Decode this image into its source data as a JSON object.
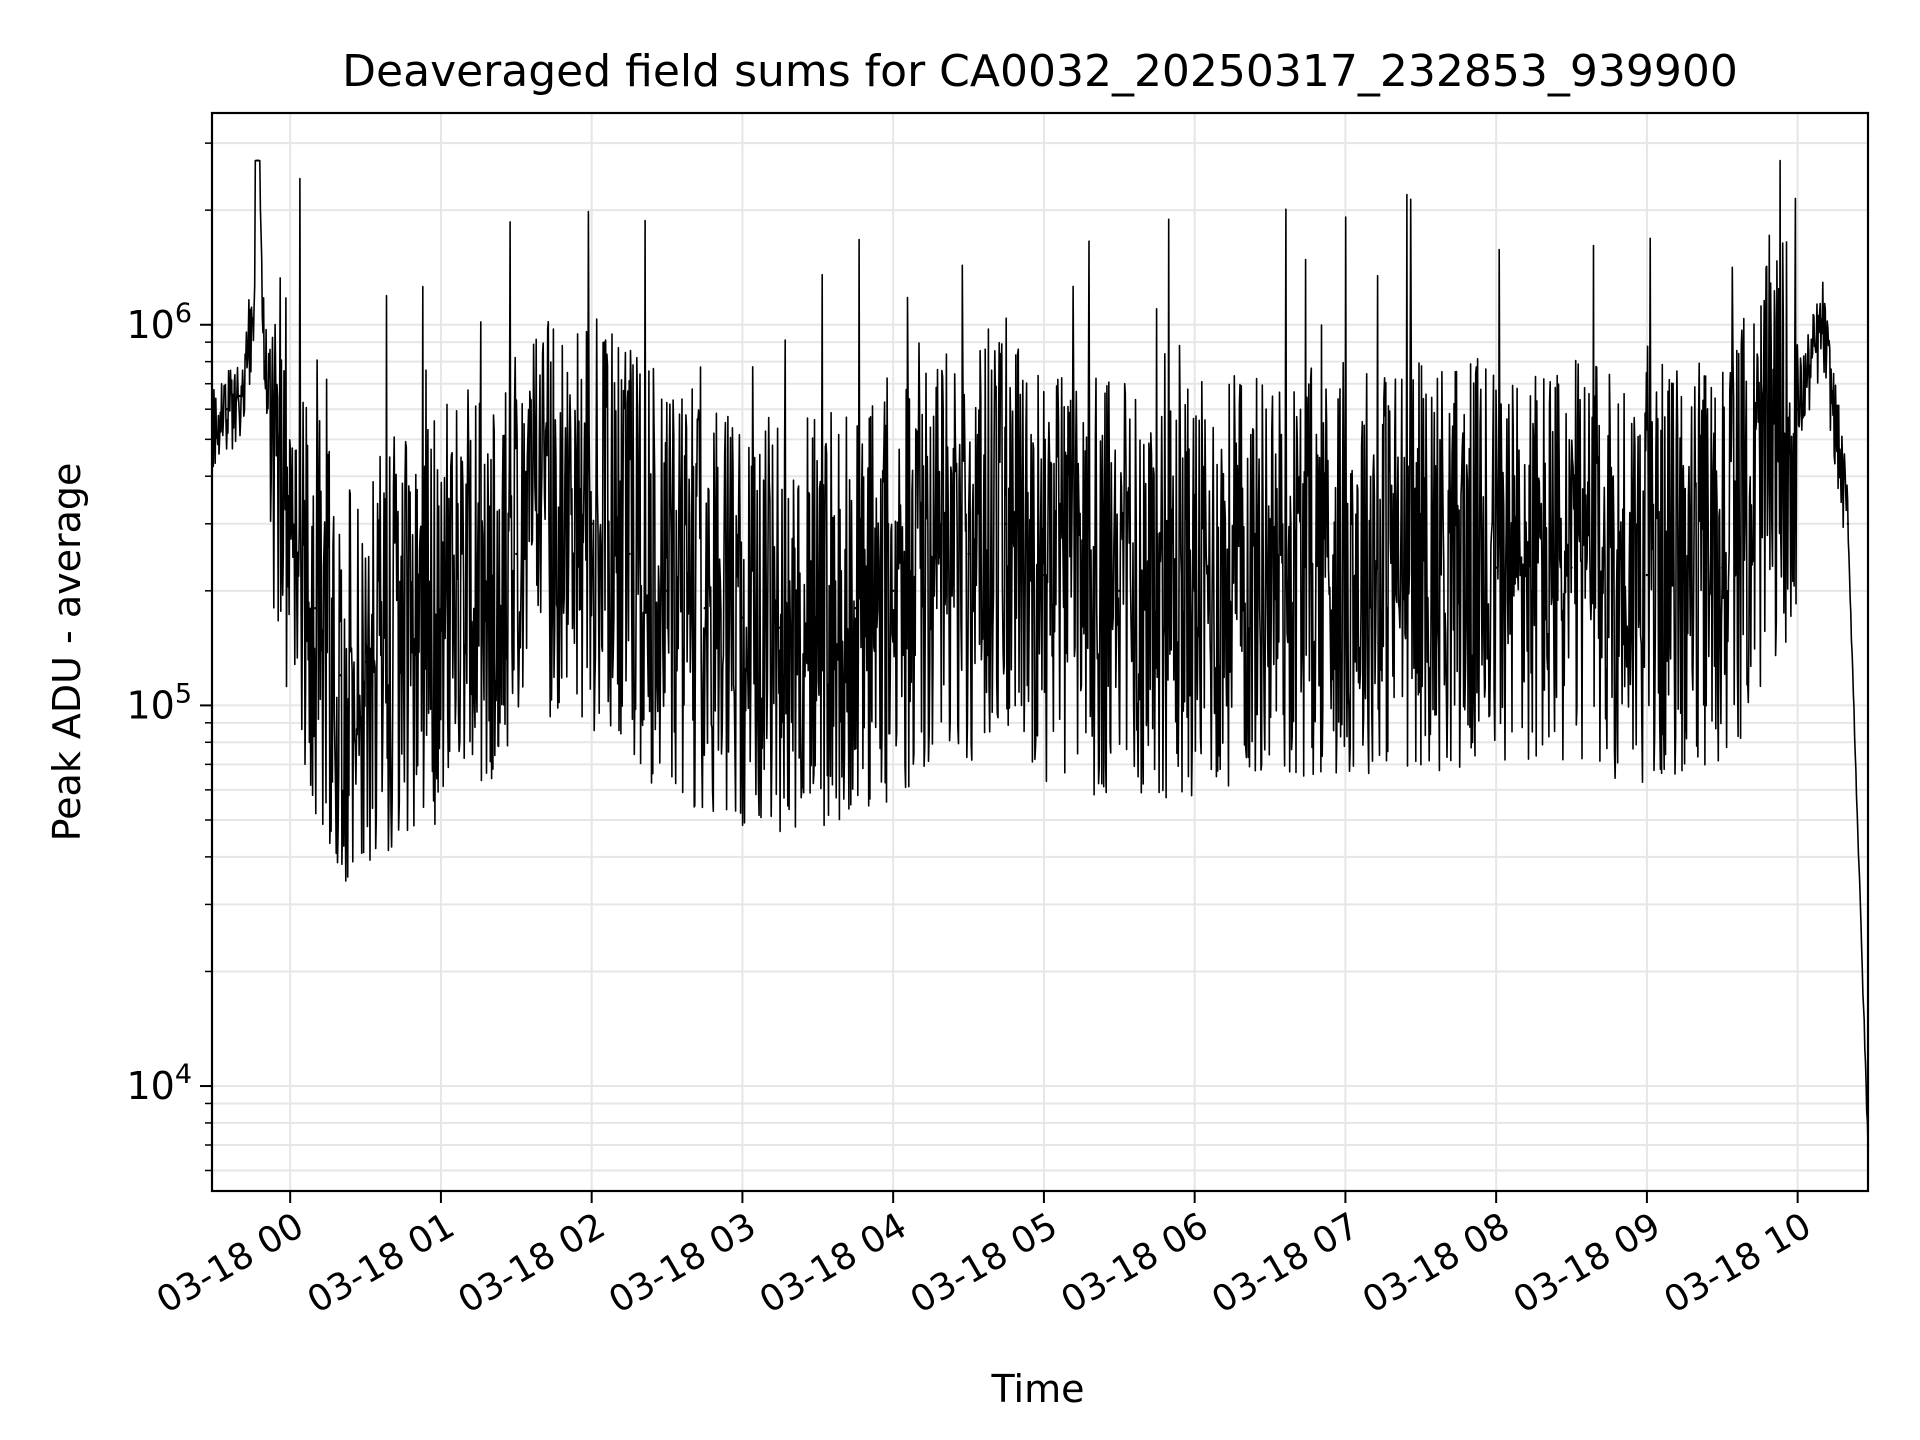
{
  "chart_data": {
    "type": "line",
    "title": "Deaveraged field sums for CA0032_20250317_232853_939900",
    "xlabel": "Time",
    "ylabel": "Peak ADU - average",
    "yscale": "log",
    "ylim": [
      5300,
      3600000
    ],
    "xlim": [
      "2025-03-17 23:28:53",
      "2025-03-18 10:28:00"
    ],
    "grid": true,
    "line_color": "#000000",
    "grid_color": "#e6e6e6",
    "x_ticks": [
      {
        "value": "2025-03-18 00:00",
        "label": "03-18 00"
      },
      {
        "value": "2025-03-18 01:00",
        "label": "03-18 01"
      },
      {
        "value": "2025-03-18 02:00",
        "label": "03-18 02"
      },
      {
        "value": "2025-03-18 03:00",
        "label": "03-18 03"
      },
      {
        "value": "2025-03-18 04:00",
        "label": "03-18 04"
      },
      {
        "value": "2025-03-18 05:00",
        "label": "03-18 05"
      },
      {
        "value": "2025-03-18 06:00",
        "label": "03-18 06"
      },
      {
        "value": "2025-03-18 07:00",
        "label": "03-18 07"
      },
      {
        "value": "2025-03-18 08:00",
        "label": "03-18 08"
      },
      {
        "value": "2025-03-18 09:00",
        "label": "03-18 09"
      },
      {
        "value": "2025-03-18 10:00",
        "label": "03-18 10"
      }
    ],
    "y_ticks": [
      {
        "value": 10000,
        "base": "10",
        "exp": "4"
      },
      {
        "value": 100000,
        "base": "10",
        "exp": "5"
      },
      {
        "value": 1000000,
        "base": "10",
        "exp": "6"
      }
    ],
    "series": [
      {
        "x": [
          "2025-03-17 23:29",
          "2025-03-17 23:35",
          "2025-03-17 23:40",
          "2025-03-17 23:45",
          "2025-03-17 23:47",
          "2025-03-17 23:50",
          "2025-03-17 23:55",
          "2025-03-18 00:00",
          "2025-03-18 00:10",
          "2025-03-18 00:20",
          "2025-03-18 00:30",
          "2025-03-18 00:45",
          "2025-03-18 01:00",
          "2025-03-18 01:15",
          "2025-03-18 01:30",
          "2025-03-18 01:45",
          "2025-03-18 02:00",
          "2025-03-18 02:15",
          "2025-03-18 02:30",
          "2025-03-18 02:45",
          "2025-03-18 03:00",
          "2025-03-18 03:15",
          "2025-03-18 03:30",
          "2025-03-18 03:45",
          "2025-03-18 04:00",
          "2025-03-18 04:15",
          "2025-03-18 04:30",
          "2025-03-18 04:45",
          "2025-03-18 05:00",
          "2025-03-18 05:30",
          "2025-03-18 06:00",
          "2025-03-18 06:30",
          "2025-03-18 07:00",
          "2025-03-18 07:30",
          "2025-03-18 08:00",
          "2025-03-18 08:30",
          "2025-03-18 09:00",
          "2025-03-18 09:30",
          "2025-03-18 10:00",
          "2025-03-18 10:10",
          "2025-03-18 10:20",
          "2025-03-18 10:28"
        ],
        "y": [
          550000,
          600000,
          650000,
          1000000,
          2700000,
          800000,
          500000,
          350000,
          180000,
          120000,
          130000,
          150000,
          170000,
          200000,
          250000,
          300000,
          300000,
          250000,
          200000,
          180000,
          170000,
          160000,
          170000,
          180000,
          200000,
          230000,
          250000,
          300000,
          220000,
          200000,
          200000,
          220000,
          230000,
          240000,
          230000,
          230000,
          220000,
          230000,
          600000,
          1000000,
          300000,
          7000
        ]
      }
    ]
  }
}
